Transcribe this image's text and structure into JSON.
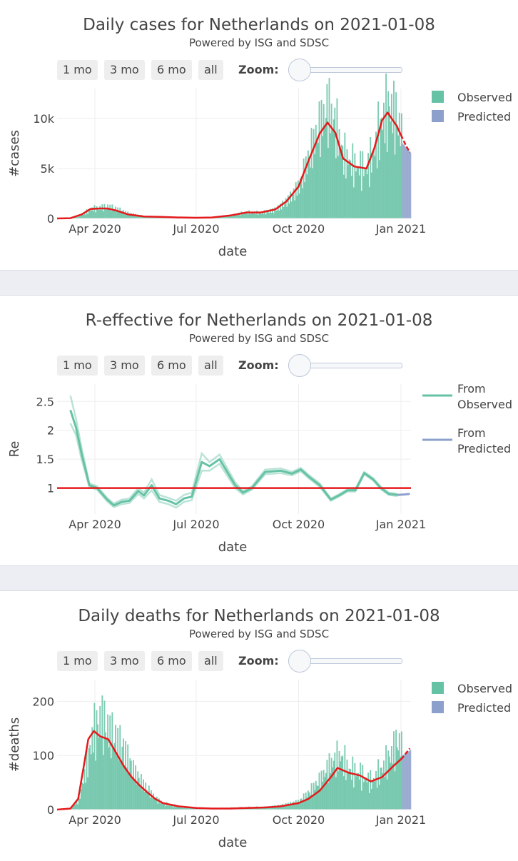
{
  "controls": {
    "buttons": [
      "1 mo",
      "3 mo",
      "6 mo",
      "all"
    ],
    "zoom_label": "Zoom:"
  },
  "colors": {
    "observed": "#66c2a5",
    "predicted": "#8da0cb",
    "trend": "#e41a1c",
    "grid": "#eeeeee",
    "gap": "#eceef3"
  },
  "chart_data": [
    {
      "type": "bar",
      "title": "Daily cases for Netherlands on 2021-01-08",
      "subtitle": "Powered by ISG and SDSC",
      "xlabel": "date",
      "ylabel": "#cases",
      "xlim": [
        "2020-02-27",
        "2021-01-10"
      ],
      "ylim": [
        0,
        13000
      ],
      "yticks": [
        {
          "value": 0,
          "label": "0"
        },
        {
          "value": 5000,
          "label": "5k"
        },
        {
          "value": 10000,
          "label": "10k"
        }
      ],
      "xticks": [
        {
          "date": "2020-04-01",
          "label": "Apr 2020"
        },
        {
          "date": "2020-07-01",
          "label": "Jul 2020"
        },
        {
          "date": "2020-10-01",
          "label": "Oct 2020"
        },
        {
          "date": "2021-01-01",
          "label": "Jan 2021"
        }
      ],
      "legend": {
        "position": "top-right",
        "entries": [
          "Observed",
          "Predicted"
        ]
      },
      "observed_end": "2021-01-01",
      "observed": [
        [
          "2020-02-27",
          0
        ],
        [
          "2020-03-10",
          30
        ],
        [
          "2020-03-20",
          400
        ],
        [
          "2020-03-28",
          1000
        ],
        [
          "2020-04-05",
          1100
        ],
        [
          "2020-04-12",
          1150
        ],
        [
          "2020-04-20",
          900
        ],
        [
          "2020-05-01",
          450
        ],
        [
          "2020-05-15",
          200
        ],
        [
          "2020-06-01",
          150
        ],
        [
          "2020-06-15",
          100
        ],
        [
          "2020-07-01",
          70
        ],
        [
          "2020-07-15",
          100
        ],
        [
          "2020-08-01",
          300
        ],
        [
          "2020-08-15",
          600
        ],
        [
          "2020-08-28",
          600
        ],
        [
          "2020-09-10",
          950
        ],
        [
          "2020-09-20",
          1800
        ],
        [
          "2020-10-01",
          3200
        ],
        [
          "2020-10-10",
          5800
        ],
        [
          "2020-10-20",
          8500
        ],
        [
          "2020-10-27",
          10200
        ],
        [
          "2020-11-03",
          8800
        ],
        [
          "2020-11-10",
          6200
        ],
        [
          "2020-11-20",
          5500
        ],
        [
          "2020-12-01",
          5400
        ],
        [
          "2020-12-08",
          7500
        ],
        [
          "2020-12-15",
          10500
        ],
        [
          "2020-12-22",
          11200
        ],
        [
          "2020-12-28",
          9500
        ],
        [
          "2021-01-01",
          8000
        ]
      ],
      "predicted": [
        [
          "2021-01-02",
          7500
        ],
        [
          "2021-01-09",
          6600
        ]
      ],
      "trend": [
        [
          "2020-02-27",
          0
        ],
        [
          "2020-03-10",
          30
        ],
        [
          "2020-03-20",
          400
        ],
        [
          "2020-03-28",
          950
        ],
        [
          "2020-04-05",
          1000
        ],
        [
          "2020-04-12",
          1000
        ],
        [
          "2020-04-20",
          800
        ],
        [
          "2020-05-01",
          400
        ],
        [
          "2020-05-15",
          200
        ],
        [
          "2020-06-01",
          150
        ],
        [
          "2020-06-15",
          100
        ],
        [
          "2020-07-01",
          70
        ],
        [
          "2020-07-15",
          100
        ],
        [
          "2020-08-01",
          300
        ],
        [
          "2020-08-15",
          600
        ],
        [
          "2020-08-28",
          600
        ],
        [
          "2020-09-10",
          900
        ],
        [
          "2020-09-20",
          1700
        ],
        [
          "2020-10-01",
          3200
        ],
        [
          "2020-10-10",
          5800
        ],
        [
          "2020-10-20",
          8500
        ],
        [
          "2020-10-27",
          9600
        ],
        [
          "2020-11-03",
          8600
        ],
        [
          "2020-11-10",
          6000
        ],
        [
          "2020-11-20",
          5200
        ],
        [
          "2020-12-01",
          5000
        ],
        [
          "2020-12-08",
          7000
        ],
        [
          "2020-12-15",
          9800
        ],
        [
          "2020-12-20",
          10600
        ],
        [
          "2020-12-28",
          9300
        ],
        [
          "2021-01-05",
          7400
        ],
        [
          "2021-01-09",
          6600
        ]
      ]
    },
    {
      "type": "line",
      "title": "R-effective for Netherlands on 2021-01-08",
      "subtitle": "Powered by ISG and SDSC",
      "xlabel": "date",
      "ylabel": "Re",
      "xlim": [
        "2020-02-27",
        "2021-01-10"
      ],
      "ylim": [
        0.55,
        2.8
      ],
      "yticks": [
        {
          "value": 1,
          "label": "1"
        },
        {
          "value": 1.5,
          "label": "1.5"
        },
        {
          "value": 2,
          "label": "2"
        },
        {
          "value": 2.5,
          "label": "2.5"
        }
      ],
      "xticks": [
        {
          "date": "2020-04-01",
          "label": "Apr 2020"
        },
        {
          "date": "2020-07-01",
          "label": "Jul 2020"
        },
        {
          "date": "2020-10-01",
          "label": "Oct 2020"
        },
        {
          "date": "2021-01-01",
          "label": "Jan 2021"
        }
      ],
      "legend": {
        "position": "top-right",
        "entries": [
          [
            "From",
            "Observed"
          ],
          [
            "From",
            "Predicted"
          ]
        ]
      },
      "reference_line": 1,
      "observed_mean": [
        [
          "2020-03-10",
          2.35
        ],
        [
          "2020-03-15",
          2.05
        ],
        [
          "2020-03-20",
          1.6
        ],
        [
          "2020-03-27",
          1.05
        ],
        [
          "2020-04-03",
          1.0
        ],
        [
          "2020-04-12",
          0.8
        ],
        [
          "2020-04-18",
          0.7
        ],
        [
          "2020-04-25",
          0.76
        ],
        [
          "2020-05-02",
          0.78
        ],
        [
          "2020-05-10",
          0.95
        ],
        [
          "2020-05-15",
          0.87
        ],
        [
          "2020-05-22",
          1.05
        ],
        [
          "2020-05-29",
          0.82
        ],
        [
          "2020-06-06",
          0.78
        ],
        [
          "2020-06-13",
          0.72
        ],
        [
          "2020-06-20",
          0.82
        ],
        [
          "2020-06-27",
          0.85
        ],
        [
          "2020-07-06",
          1.45
        ],
        [
          "2020-07-13",
          1.38
        ],
        [
          "2020-07-22",
          1.5
        ],
        [
          "2020-08-05",
          1.05
        ],
        [
          "2020-08-12",
          0.92
        ],
        [
          "2020-08-20",
          1.0
        ],
        [
          "2020-09-01",
          1.28
        ],
        [
          "2020-09-15",
          1.3
        ],
        [
          "2020-09-25",
          1.25
        ],
        [
          "2020-10-03",
          1.32
        ],
        [
          "2020-10-10",
          1.2
        ],
        [
          "2020-10-20",
          1.05
        ],
        [
          "2020-10-30",
          0.8
        ],
        [
          "2020-11-07",
          0.88
        ],
        [
          "2020-11-14",
          0.96
        ],
        [
          "2020-11-21",
          0.96
        ],
        [
          "2020-11-29",
          1.26
        ],
        [
          "2020-12-07",
          1.15
        ],
        [
          "2020-12-14",
          1.0
        ],
        [
          "2020-12-21",
          0.9
        ],
        [
          "2020-12-29",
          0.88
        ]
      ],
      "observed_upper": [
        [
          "2020-03-10",
          2.6
        ],
        [
          "2020-03-15",
          2.2
        ],
        [
          "2020-03-20",
          1.7
        ],
        [
          "2020-03-27",
          1.08
        ],
        [
          "2020-04-03",
          1.03
        ],
        [
          "2020-04-12",
          0.83
        ],
        [
          "2020-04-18",
          0.73
        ],
        [
          "2020-04-25",
          0.8
        ],
        [
          "2020-05-02",
          0.82
        ],
        [
          "2020-05-10",
          1.0
        ],
        [
          "2020-05-15",
          0.92
        ],
        [
          "2020-05-22",
          1.15
        ],
        [
          "2020-05-29",
          0.88
        ],
        [
          "2020-06-06",
          0.83
        ],
        [
          "2020-06-13",
          0.78
        ],
        [
          "2020-06-20",
          0.88
        ],
        [
          "2020-06-27",
          0.92
        ],
        [
          "2020-07-06",
          1.6
        ],
        [
          "2020-07-13",
          1.45
        ],
        [
          "2020-07-22",
          1.58
        ],
        [
          "2020-08-05",
          1.1
        ],
        [
          "2020-08-12",
          0.95
        ],
        [
          "2020-08-20",
          1.03
        ],
        [
          "2020-09-01",
          1.32
        ],
        [
          "2020-09-15",
          1.34
        ],
        [
          "2020-09-25",
          1.28
        ],
        [
          "2020-10-03",
          1.35
        ],
        [
          "2020-10-10",
          1.23
        ],
        [
          "2020-10-20",
          1.08
        ],
        [
          "2020-10-30",
          0.82
        ],
        [
          "2020-11-07",
          0.9
        ],
        [
          "2020-11-14",
          0.98
        ],
        [
          "2020-11-21",
          0.98
        ],
        [
          "2020-11-29",
          1.28
        ],
        [
          "2020-12-07",
          1.17
        ],
        [
          "2020-12-14",
          1.02
        ],
        [
          "2020-12-21",
          0.92
        ],
        [
          "2020-12-29",
          0.9
        ]
      ],
      "observed_lower": [
        [
          "2020-03-10",
          2.12
        ],
        [
          "2020-03-15",
          1.92
        ],
        [
          "2020-03-20",
          1.5
        ],
        [
          "2020-03-27",
          1.02
        ],
        [
          "2020-04-03",
          0.97
        ],
        [
          "2020-04-12",
          0.77
        ],
        [
          "2020-04-18",
          0.67
        ],
        [
          "2020-04-25",
          0.72
        ],
        [
          "2020-05-02",
          0.74
        ],
        [
          "2020-05-10",
          0.9
        ],
        [
          "2020-05-15",
          0.82
        ],
        [
          "2020-05-22",
          0.96
        ],
        [
          "2020-05-29",
          0.76
        ],
        [
          "2020-06-06",
          0.72
        ],
        [
          "2020-06-13",
          0.66
        ],
        [
          "2020-06-20",
          0.76
        ],
        [
          "2020-06-27",
          0.79
        ],
        [
          "2020-07-06",
          1.3
        ],
        [
          "2020-07-13",
          1.3
        ],
        [
          "2020-07-22",
          1.42
        ],
        [
          "2020-08-05",
          1.0
        ],
        [
          "2020-08-12",
          0.89
        ],
        [
          "2020-08-20",
          0.97
        ],
        [
          "2020-09-01",
          1.24
        ],
        [
          "2020-09-15",
          1.26
        ],
        [
          "2020-09-25",
          1.22
        ],
        [
          "2020-10-03",
          1.29
        ],
        [
          "2020-10-10",
          1.17
        ],
        [
          "2020-10-20",
          1.02
        ],
        [
          "2020-10-30",
          0.78
        ],
        [
          "2020-11-07",
          0.86
        ],
        [
          "2020-11-14",
          0.94
        ],
        [
          "2020-11-21",
          0.94
        ],
        [
          "2020-11-29",
          1.24
        ],
        [
          "2020-12-07",
          1.13
        ],
        [
          "2020-12-14",
          0.98
        ],
        [
          "2020-12-21",
          0.88
        ],
        [
          "2020-12-29",
          0.86
        ]
      ],
      "predicted": [
        [
          "2020-12-29",
          0.88
        ],
        [
          "2021-01-05",
          0.89
        ],
        [
          "2021-01-09",
          0.9
        ]
      ]
    },
    {
      "type": "bar",
      "title": "Daily deaths for Netherlands on 2021-01-08",
      "subtitle": "Powered by ISG and SDSC",
      "xlabel": "date",
      "ylabel": "#deaths",
      "xlim": [
        "2020-02-27",
        "2021-01-10"
      ],
      "ylim": [
        0,
        240
      ],
      "yticks": [
        {
          "value": 0,
          "label": "0"
        },
        {
          "value": 100,
          "label": "100"
        },
        {
          "value": 200,
          "label": "200"
        }
      ],
      "xticks": [
        {
          "date": "2020-04-01",
          "label": "Apr 2020"
        },
        {
          "date": "2020-07-01",
          "label": "Jul 2020"
        },
        {
          "date": "2020-10-01",
          "label": "Oct 2020"
        },
        {
          "date": "2021-01-01",
          "label": "Jan 2021"
        }
      ],
      "legend": {
        "position": "top-right",
        "entries": [
          "Observed",
          "Predicted"
        ]
      },
      "observed_end": "2021-01-01",
      "observed": [
        [
          "2020-02-27",
          0
        ],
        [
          "2020-03-10",
          2
        ],
        [
          "2020-03-17",
          20
        ],
        [
          "2020-03-24",
          90
        ],
        [
          "2020-03-30",
          150
        ],
        [
          "2020-04-06",
          170
        ],
        [
          "2020-04-13",
          140
        ],
        [
          "2020-04-20",
          120
        ],
        [
          "2020-04-27",
          100
        ],
        [
          "2020-05-04",
          70
        ],
        [
          "2020-05-11",
          50
        ],
        [
          "2020-05-18",
          35
        ],
        [
          "2020-05-25",
          20
        ],
        [
          "2020-06-01",
          12
        ],
        [
          "2020-06-15",
          6
        ],
        [
          "2020-07-01",
          3
        ],
        [
          "2020-07-15",
          2
        ],
        [
          "2020-08-01",
          3
        ],
        [
          "2020-08-15",
          4
        ],
        [
          "2020-09-01",
          5
        ],
        [
          "2020-09-15",
          8
        ],
        [
          "2020-10-01",
          15
        ],
        [
          "2020-10-10",
          30
        ],
        [
          "2020-10-20",
          50
        ],
        [
          "2020-10-30",
          80
        ],
        [
          "2020-11-07",
          95
        ],
        [
          "2020-11-15",
          75
        ],
        [
          "2020-11-25",
          70
        ],
        [
          "2020-12-05",
          55
        ],
        [
          "2020-12-15",
          80
        ],
        [
          "2020-12-22",
          100
        ],
        [
          "2020-12-29",
          120
        ],
        [
          "2021-01-01",
          110
        ]
      ],
      "predicted": [
        [
          "2021-01-02",
          100
        ],
        [
          "2021-01-09",
          110
        ]
      ],
      "trend": [
        [
          "2020-02-27",
          0
        ],
        [
          "2020-03-10",
          2
        ],
        [
          "2020-03-17",
          20
        ],
        [
          "2020-03-22",
          80
        ],
        [
          "2020-03-26",
          130
        ],
        [
          "2020-03-31",
          145
        ],
        [
          "2020-04-06",
          135
        ],
        [
          "2020-04-13",
          130
        ],
        [
          "2020-04-20",
          105
        ],
        [
          "2020-04-27",
          80
        ],
        [
          "2020-05-04",
          60
        ],
        [
          "2020-05-11",
          45
        ],
        [
          "2020-05-18",
          32
        ],
        [
          "2020-05-25",
          20
        ],
        [
          "2020-06-01",
          12
        ],
        [
          "2020-06-15",
          6
        ],
        [
          "2020-07-01",
          3
        ],
        [
          "2020-07-15",
          2
        ],
        [
          "2020-08-01",
          2
        ],
        [
          "2020-08-15",
          3
        ],
        [
          "2020-09-01",
          4
        ],
        [
          "2020-09-15",
          6
        ],
        [
          "2020-10-01",
          12
        ],
        [
          "2020-10-10",
          20
        ],
        [
          "2020-10-20",
          35
        ],
        [
          "2020-10-30",
          60
        ],
        [
          "2020-11-05",
          77
        ],
        [
          "2020-11-15",
          68
        ],
        [
          "2020-11-25",
          63
        ],
        [
          "2020-12-05",
          52
        ],
        [
          "2020-12-15",
          60
        ],
        [
          "2020-12-25",
          80
        ],
        [
          "2021-01-02",
          95
        ],
        [
          "2021-01-09",
          113
        ]
      ]
    }
  ]
}
